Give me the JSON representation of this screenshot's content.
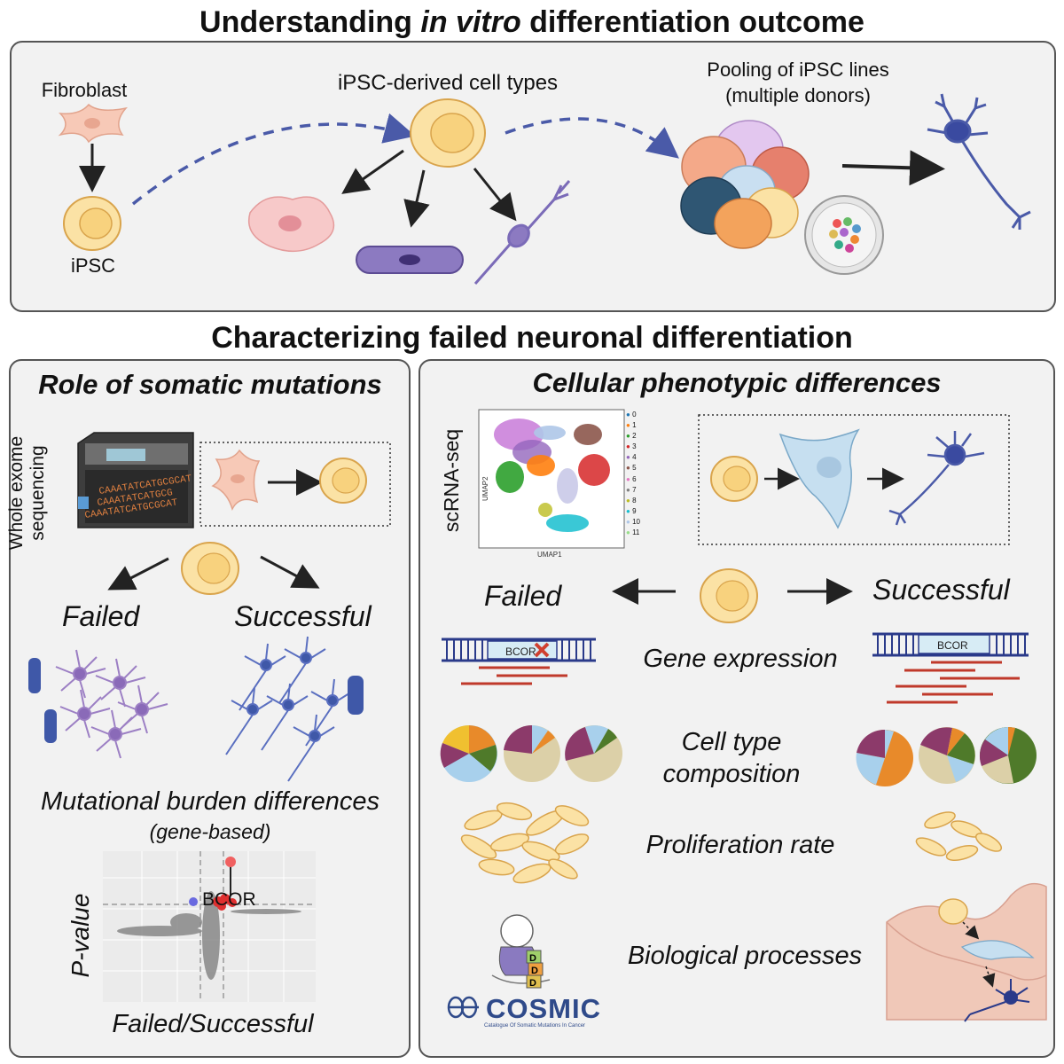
{
  "top": {
    "title_pre": "Understanding ",
    "title_em": "in vitro",
    "title_post": " differentiation outcome",
    "fibroblast": "Fibroblast",
    "ipsc": "iPSC",
    "derived": "iPSC-derived cell types",
    "pooling_1": "Pooling of iPSC lines",
    "pooling_2": "(multiple donors)"
  },
  "middle": {
    "title": "Characterizing failed neuronal differentiation"
  },
  "left": {
    "title": "Role of somatic mutations",
    "wes_1": "Whole exome",
    "wes_2": "sequencing",
    "dna_seq_1": "CAAATATCATGCGCAT",
    "dna_seq_2": "CAAATATCATGCG",
    "dna_seq_3": "CAAATATCATGCGCAT",
    "failed": "Failed",
    "successful": "Successful",
    "burden": "Mutational burden differences",
    "burden_sub": "(gene-based)",
    "y_label": "P-value",
    "x_label": "Failed/Successful",
    "gene": "BCOR"
  },
  "right": {
    "title": "Cellular phenotypic differences",
    "scrna": "scRNA-seq",
    "umap_x": "UMAP1",
    "umap_y": "UMAP2",
    "legend": [
      "0",
      "1",
      "2",
      "3",
      "4",
      "5",
      "6",
      "7",
      "8",
      "9",
      "10",
      "11"
    ],
    "legend_colors": [
      "#1f77b4",
      "#ff7f0e",
      "#2ca02c",
      "#d62728",
      "#9467bd",
      "#8c564b",
      "#e377c2",
      "#7f7f7f",
      "#bcbd22",
      "#17becf",
      "#aec7e8",
      "#98df8a"
    ],
    "failed": "Failed",
    "successful": "Successful",
    "gene_expression": "Gene expression",
    "bcor": "BCOR",
    "cell_type_1": "Cell type",
    "cell_type_2": "composition",
    "proliferation": "Proliferation rate",
    "biological": "Biological processes",
    "cosmic": "COSMIC",
    "cosmic_sub": "Catalogue Of Somatic Mutations In Cancer",
    "blocks": [
      "D",
      "D",
      "D"
    ]
  }
}
